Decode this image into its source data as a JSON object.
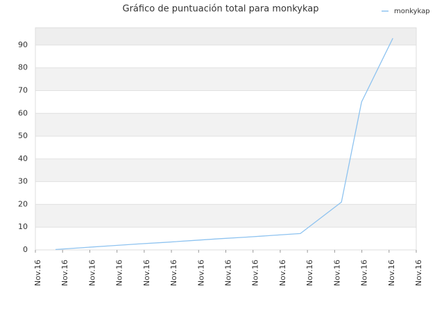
{
  "chart_data": {
    "type": "line",
    "title": "Gráfico de puntuación total para monkykap",
    "x": [
      0.74,
      1.74,
      2.74,
      3.74,
      4.74,
      5.74,
      6.74,
      7.74,
      8.74,
      9.74,
      11.25,
      11.99,
      13.14
    ],
    "series": [
      {
        "name": "monkykap",
        "color": "#8ec3f0",
        "values": [
          0.2,
          1,
          1.8,
          2.6,
          3.3,
          4.1,
          4.9,
          5.6,
          6.4,
          7.2,
          21,
          65,
          93
        ]
      }
    ],
    "xlim": [
      0,
      14
    ],
    "xticks": [
      {
        "value": 0,
        "label": "Nov.16"
      },
      {
        "value": 1,
        "label": "Nov.16"
      },
      {
        "value": 2,
        "label": "Nov.16"
      },
      {
        "value": 3,
        "label": "Nov.16"
      },
      {
        "value": 4,
        "label": "Nov.16"
      },
      {
        "value": 5,
        "label": "Nov.16"
      },
      {
        "value": 6,
        "label": "Nov.16"
      },
      {
        "value": 7,
        "label": "Nov.16"
      },
      {
        "value": 8,
        "label": "Nov.16"
      },
      {
        "value": 9,
        "label": "Nov.16"
      },
      {
        "value": 10,
        "label": "Nov.16"
      },
      {
        "value": 11,
        "label": "Nov.16"
      },
      {
        "value": 12,
        "label": "Nov.16"
      },
      {
        "value": 13,
        "label": "Nov.16"
      },
      {
        "value": 14,
        "label": "Nov.16"
      }
    ],
    "ylim": [
      0,
      97.6
    ],
    "yticks": [
      0,
      10,
      20,
      30,
      40,
      50,
      60,
      70,
      80,
      90
    ],
    "grid": true,
    "legend": "top-right"
  }
}
